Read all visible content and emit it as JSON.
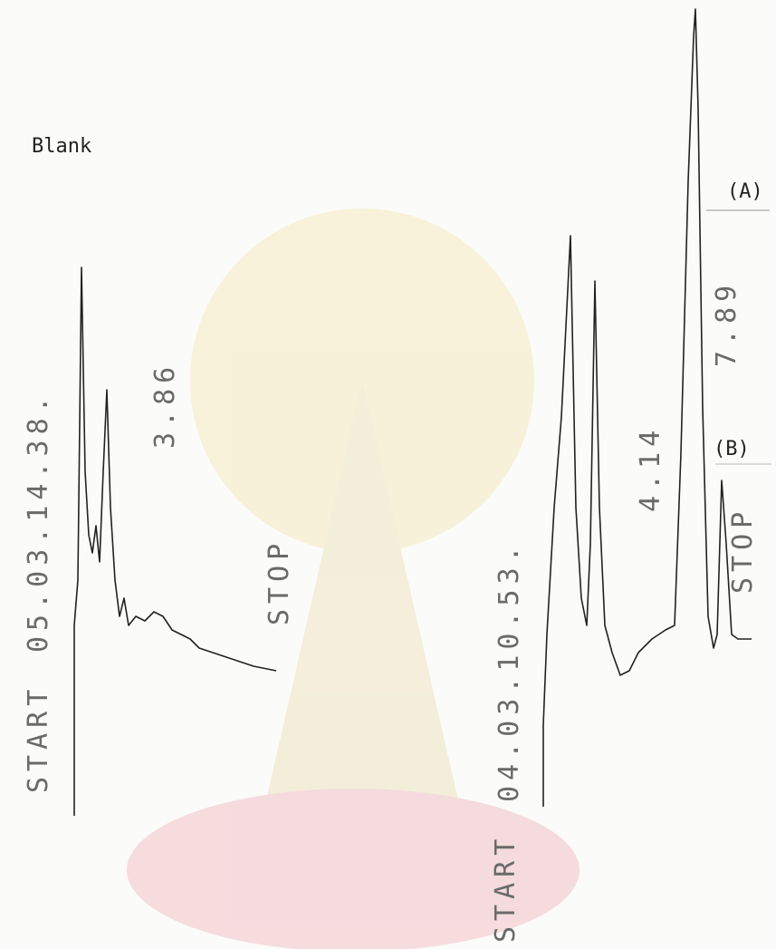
{
  "left_trace": {
    "note_label": "Blank",
    "start": "START",
    "timestamp": "05.03.14.38.",
    "peak_label": "3.86",
    "stop": "STOP"
  },
  "right_trace": {
    "start": "START",
    "timestamp": "04.03.10.53.",
    "peak_labels": [
      "4.14",
      "7.89"
    ],
    "label_a": "(A)",
    "label_b": "(B)",
    "stop": "STOP"
  }
}
